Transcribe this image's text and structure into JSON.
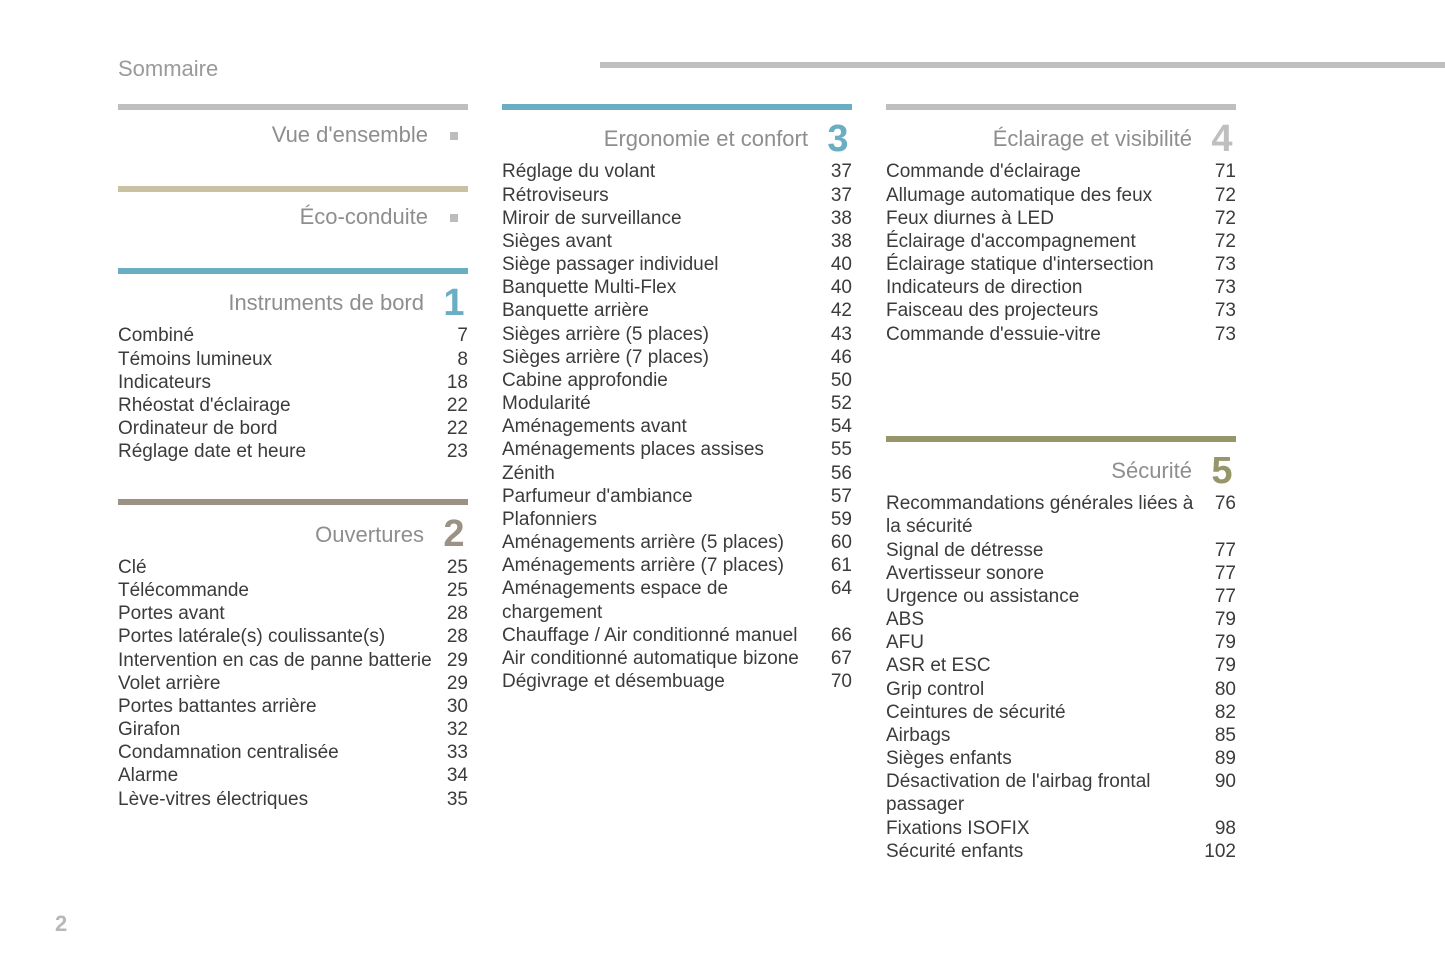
{
  "page": {
    "title": "Sommaire",
    "number": "2",
    "colors": {
      "grey_rule": "#bfbfbf",
      "beige_rule": "#c8c2a3",
      "teal_accent": "#6aaec3",
      "olive_accent": "#97966a",
      "taupe_accent": "#9c9185",
      "text": "#3b3b3b",
      "muted": "#8e8e8e",
      "marker": "#bcbcbc"
    }
  },
  "columns": [
    {
      "sections": [
        {
          "title": "Vue d'ensemble",
          "rule_color": "#bfbfbf",
          "num": "",
          "num_color": "",
          "marker": true,
          "items": []
        },
        {
          "title": "Éco-conduite",
          "rule_color": "#c8c2a3",
          "num": "",
          "num_color": "",
          "marker": true,
          "items": []
        },
        {
          "title": "Instruments de bord",
          "rule_color": "#6aaec3",
          "num": "1",
          "num_color": "#6aaec3",
          "marker": false,
          "items": [
            {
              "label": "Combiné",
              "page": "7"
            },
            {
              "label": "Témoins lumineux",
              "page": "8"
            },
            {
              "label": "Indicateurs",
              "page": "18"
            },
            {
              "label": "Rhéostat d'éclairage",
              "page": "22"
            },
            {
              "label": "Ordinateur de bord",
              "page": "22"
            },
            {
              "label": "Réglage date et heure",
              "page": "23"
            }
          ]
        },
        {
          "title": "Ouvertures",
          "rule_color": "#9c9185",
          "num": "2",
          "num_color": "#9c9185",
          "marker": false,
          "items": [
            {
              "label": "Clé",
              "page": "25"
            },
            {
              "label": "Télécommande",
              "page": "25"
            },
            {
              "label": "Portes avant",
              "page": "28"
            },
            {
              "label": "Portes latérale(s) coulissante(s)",
              "page": "28"
            },
            {
              "label": "Intervention en cas de panne batterie",
              "page": "29"
            },
            {
              "label": "Volet arrière",
              "page": "29"
            },
            {
              "label": "Portes battantes arrière",
              "page": "30"
            },
            {
              "label": "Girafon",
              "page": "32"
            },
            {
              "label": "Condamnation centralisée",
              "page": "33"
            },
            {
              "label": "Alarme",
              "page": "34"
            },
            {
              "label": "Lève-vitres électriques",
              "page": "35"
            }
          ]
        }
      ]
    },
    {
      "sections": [
        {
          "title": "Ergonomie et confort",
          "rule_color": "#6aaec3",
          "num": "3",
          "num_color": "#6aaec3",
          "marker": false,
          "items": [
            {
              "label": "Réglage du volant",
              "page": "37"
            },
            {
              "label": "Rétroviseurs",
              "page": "37"
            },
            {
              "label": "Miroir de surveillance",
              "page": "38"
            },
            {
              "label": "Sièges avant",
              "page": "38"
            },
            {
              "label": "Siège passager individuel",
              "page": "40"
            },
            {
              "label": "Banquette Multi-Flex",
              "page": "40"
            },
            {
              "label": "Banquette arrière",
              "page": "42"
            },
            {
              "label": "Sièges arrière (5 places)",
              "page": "43"
            },
            {
              "label": "Sièges arrière (7 places)",
              "page": "46"
            },
            {
              "label": "Cabine approfondie",
              "page": "50"
            },
            {
              "label": "Modularité",
              "page": "52"
            },
            {
              "label": "Aménagements avant",
              "page": "54"
            },
            {
              "label": "Aménagements places assises",
              "page": "55"
            },
            {
              "label": "Zénith",
              "page": "56"
            },
            {
              "label": "Parfumeur d'ambiance",
              "page": "57"
            },
            {
              "label": "Plafonniers",
              "page": "59"
            },
            {
              "label": "Aménagements arrière (5 places)",
              "page": "60"
            },
            {
              "label": "Aménagements arrière (7 places)",
              "page": "61"
            },
            {
              "label": "Aménagements espace de chargement",
              "page": "64"
            },
            {
              "label": "Chauffage / Air conditionné manuel",
              "page": "66"
            },
            {
              "label": "Air conditionné automatique bizone",
              "page": "67"
            },
            {
              "label": "Dégivrage et désembuage",
              "page": "70"
            }
          ]
        }
      ]
    },
    {
      "sections": [
        {
          "title": "Éclairage et visibilité",
          "rule_color": "#bfbfbf",
          "num": "4",
          "num_color": "#bfbfbf",
          "marker": false,
          "items": [
            {
              "label": "Commande d'éclairage",
              "page": "71"
            },
            {
              "label": "Allumage automatique des feux",
              "page": "72"
            },
            {
              "label": "Feux diurnes à LED",
              "page": "72"
            },
            {
              "label": "Éclairage d'accompagnement",
              "page": "72"
            },
            {
              "label": "Éclairage statique d'intersection",
              "page": "73"
            },
            {
              "label": "Indicateurs de direction",
              "page": "73"
            },
            {
              "label": "Faisceau des projecteurs",
              "page": "73"
            },
            {
              "label": "Commande d'essuie-vitre",
              "page": "73"
            }
          ]
        },
        {
          "title": "Sécurité",
          "rule_color": "#97966a",
          "num": "5",
          "num_color": "#97966a",
          "marker": false,
          "pre_gap": 90,
          "items": [
            {
              "label": "Recommandations générales liées à la sécurité",
              "page": "76"
            },
            {
              "label": "Signal de détresse",
              "page": "77"
            },
            {
              "label": "Avertisseur sonore",
              "page": "77"
            },
            {
              "label": "Urgence ou assistance",
              "page": "77"
            },
            {
              "label": "ABS",
              "page": "79"
            },
            {
              "label": "AFU",
              "page": "79"
            },
            {
              "label": "ASR et ESC",
              "page": "79"
            },
            {
              "label": "Grip control",
              "page": "80"
            },
            {
              "label": "Ceintures de sécurité",
              "page": "82"
            },
            {
              "label": "Airbags",
              "page": "85"
            },
            {
              "label": "Sièges enfants",
              "page": "89"
            },
            {
              "label": "Désactivation de l'airbag frontal passager",
              "page": "90"
            },
            {
              "label": "Fixations ISOFIX",
              "page": "98"
            },
            {
              "label": "Sécurité enfants",
              "page": "102"
            }
          ]
        }
      ]
    }
  ]
}
